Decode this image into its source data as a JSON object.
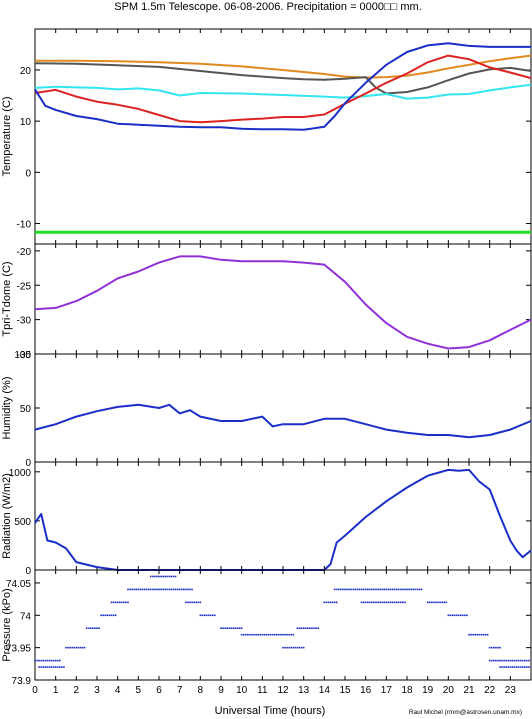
{
  "chart_data": {
    "title": "SPM 1.5m Telescope. 06-08-2006. Precipitation = 0000□□ mm.",
    "xlabel": "Universal Time (hours)",
    "credit": "Raul Michel (rmm@astrosen.unam.mx)",
    "xlim": [
      0,
      24
    ],
    "xticks": [
      "0",
      "1",
      "2",
      "3",
      "4",
      "5",
      "6",
      "7",
      "8",
      "9",
      "10",
      "11",
      "12",
      "13",
      "14",
      "15",
      "16",
      "17",
      "18",
      "19",
      "20",
      "21",
      "22",
      "23"
    ],
    "panels": [
      {
        "type": "line",
        "ylabel": "Temperature (C)",
        "ylim": [
          -14,
          28
        ],
        "yticks": [
          -10,
          0,
          10,
          20
        ],
        "series": [
          {
            "color": "#e08a1e",
            "x": [
              0,
              2,
              4,
              6,
              8,
              10,
              12,
              14,
              15,
              16,
              17,
              18,
              19,
              20,
              21,
              22,
              23,
              24
            ],
            "y": [
              21.8,
              21.8,
              21.7,
              21.5,
              21.2,
              20.7,
              20,
              19.2,
              18.7,
              18.5,
              18.6,
              18.9,
              19.5,
              20.3,
              21,
              21.7,
              22.3,
              22.8
            ]
          },
          {
            "color": "#555555",
            "x": [
              0,
              2,
              4,
              6,
              8,
              10,
              12,
              13,
              14,
              15,
              16,
              16.5,
              17,
              18,
              19,
              20,
              21,
              22,
              23,
              24
            ],
            "y": [
              21.3,
              21.2,
              20.9,
              20.6,
              19.8,
              19,
              18.4,
              18.2,
              18.1,
              18.3,
              18.6,
              16.5,
              15.4,
              15.7,
              16.6,
              18,
              19.3,
              20.1,
              20.4,
              19.8
            ]
          },
          {
            "color": "#33e5ee",
            "x": [
              0,
              1,
              2,
              3,
              4,
              5,
              6,
              7,
              8,
              10,
              12,
              14,
              15,
              16,
              17,
              18,
              19,
              20,
              21,
              22,
              23,
              24
            ],
            "y": [
              16.5,
              16.7,
              16.6,
              16.5,
              16.2,
              16.4,
              16,
              15,
              15.5,
              15.4,
              15.1,
              14.8,
              14.6,
              14.9,
              15.3,
              14.4,
              14.6,
              15.2,
              15.3,
              16,
              16.6,
              17.1
            ]
          },
          {
            "color": "#dd2222",
            "x": [
              0,
              1,
              2,
              3,
              4,
              5,
              6,
              7,
              8,
              9,
              10,
              11,
              12,
              13,
              14,
              15,
              16,
              17,
              18,
              19,
              20,
              21,
              22,
              23,
              24
            ],
            "y": [
              15.5,
              16.1,
              14.8,
              13.8,
              13.2,
              12.4,
              11.2,
              10,
              9.8,
              10,
              10.3,
              10.5,
              10.8,
              10.8,
              11.3,
              13.4,
              15.4,
              17.5,
              19.3,
              21.5,
              22.8,
              22.1,
              20.5,
              19.5,
              18.4
            ]
          },
          {
            "color": "#1a2ec8",
            "x": [
              0,
              0.5,
              1,
              2,
              3,
              4,
              5,
              6,
              7,
              8,
              9,
              10,
              11,
              12,
              13,
              14,
              14.5,
              15,
              16,
              17,
              18,
              19,
              20,
              21,
              22,
              23,
              24
            ],
            "y": [
              16.2,
              13,
              12.2,
              11,
              10.4,
              9.5,
              9.3,
              9.1,
              8.9,
              8.8,
              8.8,
              8.5,
              8.4,
              8.4,
              8.3,
              8.9,
              11,
              13.5,
              17.5,
              21,
              23.5,
              24.8,
              25.2,
              24.7,
              24.5,
              24.5,
              24.5
            ]
          },
          {
            "color": "#22dd22",
            "x": [
              0,
              24
            ],
            "y": [
              -11.7,
              -11.7
            ]
          }
        ]
      },
      {
        "type": "line",
        "ylabel": "Tpri-Tdome (C)",
        "ylim": [
          -35,
          -19
        ],
        "yticks": [
          -20,
          -25,
          -30,
          -35
        ],
        "series": [
          {
            "color": "#9030d8",
            "x": [
              0,
              1,
              2,
              3,
              4,
              5,
              6,
              7,
              8,
              9,
              10,
              11,
              12,
              13,
              14,
              15,
              16,
              17,
              18,
              19,
              20,
              21,
              22,
              23,
              24
            ],
            "y": [
              -28.5,
              -28.3,
              -27.3,
              -25.8,
              -24,
              -23,
              -21.7,
              -20.8,
              -20.8,
              -21.3,
              -21.5,
              -21.5,
              -21.5,
              -21.7,
              -22,
              -24.5,
              -27.8,
              -30.5,
              -32.5,
              -33.5,
              -34.2,
              -34,
              -33,
              -31.5,
              -30
            ]
          }
        ]
      },
      {
        "type": "line",
        "ylabel": "Humidity (%)",
        "ylim": [
          0,
          100
        ],
        "yticks": [
          0,
          50,
          100
        ],
        "series": [
          {
            "color": "#1a2ec8",
            "x": [
              0,
              1,
              2,
              3,
              4,
              5,
              6,
              6.5,
              7,
              7.5,
              8,
              9,
              10,
              11,
              11.5,
              12,
              13,
              14,
              15,
              16,
              17,
              18,
              19,
              20,
              21,
              22,
              23,
              24
            ],
            "y": [
              30,
              35,
              42,
              47,
              51,
              53,
              50,
              53,
              45,
              48,
              42,
              38,
              38,
              42,
              33,
              35,
              35,
              40,
              40,
              35,
              30,
              27,
              25,
              25,
              23,
              25,
              30,
              38
            ]
          }
        ]
      },
      {
        "type": "line",
        "ylabel": "Radiation (W/m2)",
        "ylim": [
          0,
          1100
        ],
        "yticks": [
          0,
          500,
          1000
        ],
        "series": [
          {
            "color": "#1a2ec8",
            "x": [
              0,
              0.3,
              0.6,
              1,
              1.5,
              2,
              3,
              4,
              6,
              8,
              10,
              12,
              14,
              14.3,
              14.6,
              15,
              16,
              17,
              18,
              19,
              20,
              20.5,
              21,
              21.5,
              22,
              22.5,
              23,
              23.3,
              23.6,
              24
            ],
            "y": [
              480,
              570,
              300,
              280,
              220,
              80,
              30,
              0,
              0,
              0,
              0,
              0,
              0,
              60,
              280,
              350,
              540,
              700,
              840,
              960,
              1020,
              1010,
              1020,
              900,
              820,
              550,
              300,
              200,
              130,
              200
            ]
          }
        ]
      },
      {
        "type": "scatter",
        "ylabel": "Pressure (kPo)",
        "ylim": [
          73.9,
          74.07
        ],
        "yticks": [
          "73.9",
          "73.95",
          "74",
          "74.05"
        ],
        "ytick_values": [
          73.9,
          73.95,
          74.0,
          74.05
        ],
        "series": [
          {
            "color": "#1a2ec8",
            "segments": [
              [
                0.2,
                1.5,
                73.92
              ],
              [
                0,
                1.2,
                73.93
              ],
              [
                1.5,
                2.5,
                73.95
              ],
              [
                2.5,
                3.2,
                73.98
              ],
              [
                3.2,
                4.0,
                74.0
              ],
              [
                3.7,
                4.5,
                74.02
              ],
              [
                4.5,
                7.6,
                74.04
              ],
              [
                5.6,
                6.8,
                74.06
              ],
              [
                7.3,
                8.0,
                74.02
              ],
              [
                8.0,
                8.7,
                74.0
              ],
              [
                9.0,
                10.0,
                73.98
              ],
              [
                10.0,
                12.5,
                73.97
              ],
              [
                12.0,
                13.0,
                73.95
              ],
              [
                12.7,
                13.7,
                73.98
              ],
              [
                14.0,
                14.6,
                74.02
              ],
              [
                14.5,
                18.8,
                74.04
              ],
              [
                15.8,
                18.0,
                74.02
              ],
              [
                19.0,
                20.0,
                74.02
              ],
              [
                20.0,
                21.0,
                74.0
              ],
              [
                21.0,
                22.0,
                73.97
              ],
              [
                22.0,
                22.6,
                73.95
              ],
              [
                22.0,
                24.0,
                73.93
              ],
              [
                22.5,
                24.0,
                73.92
              ]
            ]
          }
        ]
      }
    ]
  }
}
